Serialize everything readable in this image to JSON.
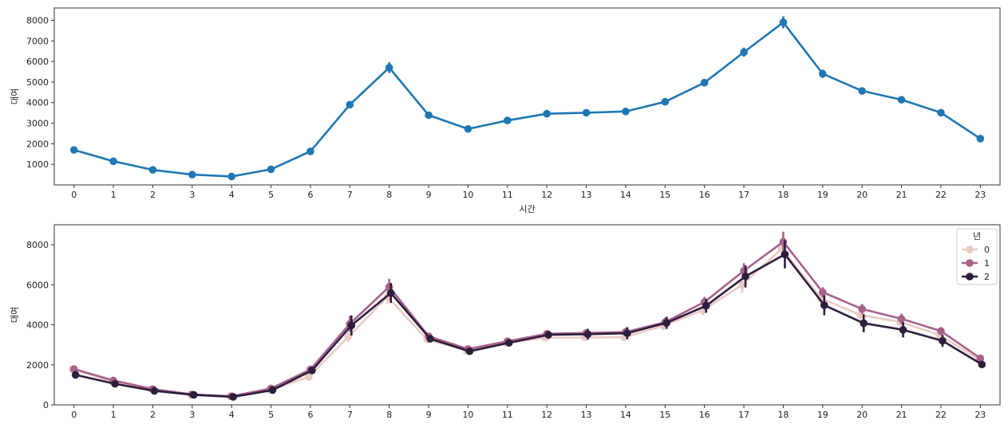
{
  "chart_data": [
    {
      "type": "line",
      "xlabel": "시간",
      "ylabel": "대여",
      "x": [
        0,
        1,
        2,
        3,
        4,
        5,
        6,
        7,
        8,
        9,
        10,
        11,
        12,
        13,
        14,
        15,
        16,
        17,
        18,
        19,
        20,
        21,
        22,
        23
      ],
      "ylim": [
        0,
        8600
      ],
      "yticks": [
        1000,
        2000,
        3000,
        4000,
        5000,
        6000,
        7000,
        8000
      ],
      "grid": false,
      "series": [
        {
          "color": "#1f77b4",
          "values": [
            1700,
            1150,
            730,
            500,
            410,
            760,
            1630,
            3900,
            5700,
            3390,
            2720,
            3130,
            3460,
            3510,
            3570,
            4040,
            4970,
            6450,
            7900,
            5400,
            4570,
            4140,
            3510,
            2250
          ],
          "err": [
            60,
            50,
            40,
            30,
            30,
            50,
            90,
            180,
            260,
            120,
            90,
            90,
            90,
            100,
            110,
            140,
            180,
            220,
            290,
            200,
            150,
            130,
            140,
            90
          ]
        }
      ]
    },
    {
      "type": "line",
      "xlabel": "",
      "ylabel": "대여",
      "x": [
        0,
        1,
        2,
        3,
        4,
        5,
        6,
        7,
        8,
        9,
        10,
        11,
        12,
        13,
        14,
        15,
        16,
        17,
        18,
        19,
        20,
        21,
        22,
        23
      ],
      "ylim": [
        0,
        9000
      ],
      "yticks": [
        0,
        2000,
        4000,
        6000,
        8000
      ],
      "grid": false,
      "legend": {
        "title": "년",
        "placement": "top-right"
      },
      "series": [
        {
          "name": "0",
          "color": "#ebcbc3",
          "values": [
            1780,
            1180,
            790,
            520,
            430,
            740,
            1400,
            3400,
            5400,
            3270,
            2710,
            3090,
            3350,
            3370,
            3380,
            3950,
            4730,
            6000,
            7800,
            5320,
            4490,
            4150,
            3500,
            2280
          ],
          "err": [
            80,
            70,
            60,
            40,
            40,
            60,
            100,
            250,
            350,
            150,
            100,
            120,
            130,
            150,
            160,
            200,
            250,
            400,
            450,
            300,
            250,
            250,
            200,
            150
          ]
        },
        {
          "name": "1",
          "color": "#a8628a",
          "values": [
            1790,
            1220,
            790,
            520,
            430,
            820,
            1770,
            4050,
            5900,
            3430,
            2790,
            3180,
            3550,
            3590,
            3640,
            4130,
            5140,
            6700,
            8150,
            5630,
            4790,
            4300,
            3690,
            2330
          ],
          "err": [
            80,
            70,
            60,
            40,
            40,
            60,
            110,
            400,
            400,
            170,
            130,
            150,
            160,
            190,
            200,
            230,
            260,
            380,
            500,
            250,
            250,
            260,
            200,
            120
          ]
        },
        {
          "name": "2",
          "color": "#2d1e3e",
          "values": [
            1500,
            1050,
            700,
            500,
            400,
            740,
            1720,
            3970,
            5590,
            3300,
            2680,
            3100,
            3500,
            3530,
            3580,
            4100,
            4950,
            6420,
            7520,
            4980,
            4080,
            3750,
            3200,
            2020
          ],
          "err": [
            90,
            80,
            70,
            40,
            40,
            70,
            130,
            500,
            500,
            180,
            160,
            150,
            200,
            270,
            300,
            300,
            350,
            550,
            700,
            500,
            450,
            380,
            300,
            180
          ]
        }
      ]
    }
  ]
}
